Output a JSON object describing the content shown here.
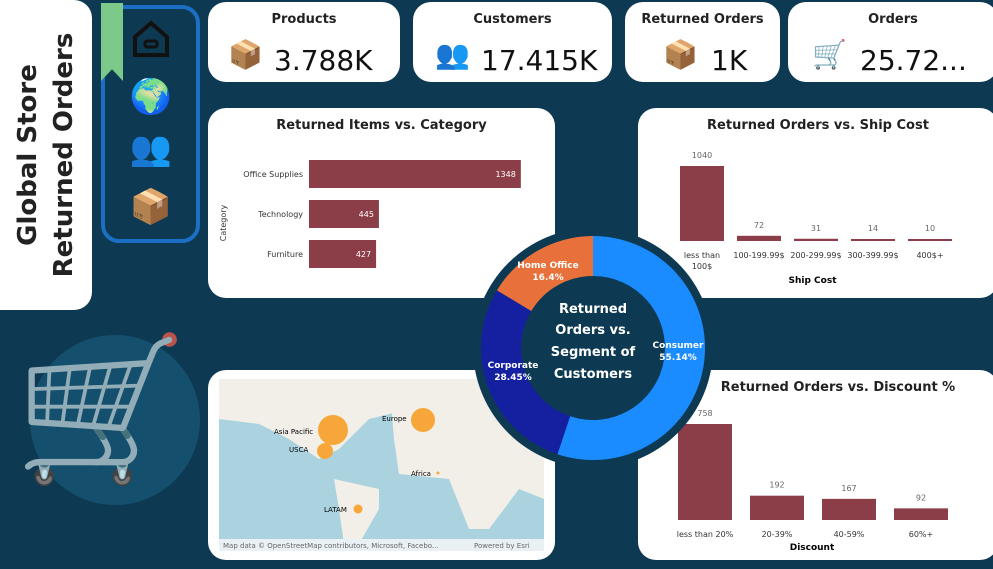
{
  "title": {
    "line1": "Global Store",
    "line2": "Returned Orders"
  },
  "nav": [
    {
      "icon": "home-icon"
    },
    {
      "icon": "globe-map-icon"
    },
    {
      "icon": "team-icon"
    },
    {
      "icon": "box-icon"
    }
  ],
  "kpis": [
    {
      "label": "Products",
      "value": "3.788K",
      "icon": "boxes-icon"
    },
    {
      "label": "Customers",
      "value": "17.415K",
      "icon": "customers-icon"
    },
    {
      "label": "Returned Orders",
      "value": "1K",
      "icon": "return-box-icon"
    },
    {
      "label": "Orders",
      "value": "25.72...",
      "icon": "cart-check-icon"
    }
  ],
  "colors": {
    "bar": "#8b3e47",
    "consumer": "#1a8cff",
    "corporate": "#1520a0",
    "home_office": "#e8703a",
    "background": "#0d3a52"
  },
  "chart_data": [
    {
      "type": "bar",
      "orientation": "horizontal",
      "title": "Returned Items vs. Category",
      "ylabel": "Category",
      "categories": [
        "Office Supplies",
        "Technology",
        "Furniture"
      ],
      "values": [
        1348,
        445,
        427
      ]
    },
    {
      "type": "bar",
      "title": "Returned Orders vs. Ship Cost",
      "xlabel": "Ship Cost",
      "categories": [
        "less than 100$",
        "100-199.99$",
        "200-299.99$",
        "300-399.99$",
        "400$+"
      ],
      "values": [
        1040,
        72,
        31,
        14,
        10
      ]
    },
    {
      "type": "bar",
      "title": "Returned Orders vs. Discount %",
      "xlabel": "Discount",
      "categories": [
        "less than 20%",
        "20-39%",
        "40-59%",
        "60%+"
      ],
      "values": [
        758,
        192,
        167,
        92
      ]
    },
    {
      "type": "pie",
      "donut": true,
      "title": "Returned Orders vs. Segment of Customers",
      "categories": [
        "Consumer",
        "Corporate",
        "Home Office"
      ],
      "values": [
        55.14,
        28.45,
        16.4
      ],
      "labels": [
        "55.14%",
        "28.45%",
        "16.4%"
      ]
    }
  ],
  "map": {
    "regions": [
      "Asia Pacific",
      "USCA",
      "Europe",
      "Africa",
      "LATAM"
    ],
    "attribution": "Map data © OpenStreetMap contributors, Microsoft, Facebo...",
    "powered": "Powered by Esri"
  }
}
